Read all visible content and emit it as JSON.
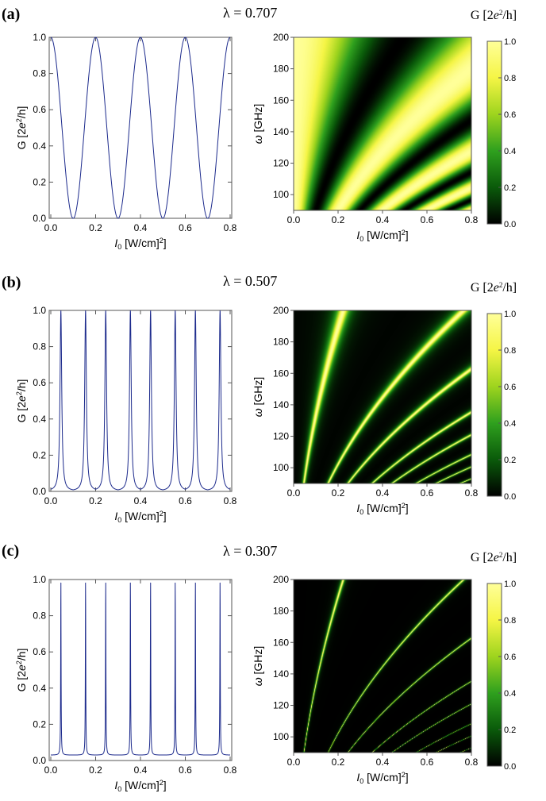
{
  "chart_data": [
    {
      "panel": "(a)",
      "lambda_label": "λ = 0.707",
      "type": "line",
      "xlabel": "I0 [W/cm2]",
      "ylabel": "G [2e2/h]",
      "xlim": [
        0.0,
        0.8
      ],
      "ylim": [
        0.0,
        1.0
      ],
      "xticks": [
        "0.0",
        "0.2",
        "0.4",
        "0.6",
        "0.8"
      ],
      "yticks": [
        "0.0",
        "0.2",
        "0.4",
        "0.6",
        "0.8",
        "1.0"
      ],
      "series": [
        {
          "color": "#1c2a8c",
          "model": {
            "gmin": 0.0,
            "period": 0.2,
            "max_at": 0.0,
            "sharpness": 1.0
          }
        }
      ]
    },
    {
      "panel": "(a)",
      "type": "heatmap",
      "xlabel": "I0 [W/cm2]",
      "ylabel": "ω [GHz]",
      "xlim": [
        0.0,
        0.8
      ],
      "ylim": [
        90,
        200
      ],
      "xticks": [
        "0.0",
        "0.2",
        "0.4",
        "0.6",
        "0.8"
      ],
      "yticks": [
        "100",
        "120",
        "140",
        "160",
        "180",
        "200"
      ],
      "colorbar": {
        "label": "G [2e2/h]",
        "ticks": [
          "0.0",
          "0.2",
          "0.4",
          "0.6",
          "0.8",
          "1.0"
        ],
        "colors": [
          "#000000",
          "#0a5a0a",
          "#2fa01e",
          "#9ed41e",
          "#f5f545",
          "#ffff99"
        ]
      },
      "model": {
        "gmin": 0.0,
        "period_at_90GHz": 0.2,
        "sharpness": 1.0
      }
    },
    {
      "panel": "(b)",
      "lambda_label": "λ = 0.507",
      "type": "line",
      "xlabel": "I0 [W/cm2]",
      "ylabel": "G [2e2/h]",
      "xlim": [
        0.0,
        0.8
      ],
      "ylim": [
        0.0,
        1.0
      ],
      "xticks": [
        "0.0",
        "0.2",
        "0.4",
        "0.6",
        "0.8"
      ],
      "yticks": [
        "0.0",
        "0.2",
        "0.4",
        "0.6",
        "0.8",
        "1.0"
      ],
      "series": [
        {
          "color": "#1c2a8c",
          "model": {
            "gmin": 0.0,
            "period": 0.2,
            "peaks_at": [
              0.045,
              0.155
            ],
            "sharpness": 7.0
          }
        }
      ]
    },
    {
      "panel": "(b)",
      "type": "heatmap",
      "xlabel": "I0 [W/cm2]",
      "ylabel": "ω [GHz]",
      "xlim": [
        0.0,
        0.8
      ],
      "ylim": [
        90,
        200
      ],
      "xticks": [
        "0.0",
        "0.2",
        "0.4",
        "0.6",
        "0.8"
      ],
      "yticks": [
        "100",
        "120",
        "140",
        "160",
        "180",
        "200"
      ],
      "colorbar": {
        "label": "G [2e2/h]",
        "ticks": [
          "0.0",
          "0.2",
          "0.4",
          "0.6",
          "0.8",
          "1.0"
        ],
        "colors": [
          "#000000",
          "#0a5a0a",
          "#2fa01e",
          "#9ed41e",
          "#f5f545",
          "#ffff99"
        ]
      },
      "model": {
        "gmin": 0.0,
        "period_at_90GHz": 0.2,
        "sharpness": 7.0
      }
    },
    {
      "panel": "(c)",
      "lambda_label": "λ = 0.307",
      "type": "line",
      "xlabel": "I0 [W/cm2]",
      "ylabel": "G [2e2/h]",
      "xlim": [
        0.0,
        0.8
      ],
      "ylim": [
        0.0,
        1.0
      ],
      "xticks": [
        "0.0",
        "0.2",
        "0.4",
        "0.6",
        "0.8"
      ],
      "yticks": [
        "0.0",
        "0.2",
        "0.4",
        "0.6",
        "0.8",
        "1.0"
      ],
      "series": [
        {
          "color": "#1c2a8c",
          "model": {
            "gmin": 0.03,
            "period": 0.2,
            "peaks_at": [
              0.045,
              0.155
            ],
            "sharpness": 30.0
          }
        }
      ]
    },
    {
      "panel": "(c)",
      "type": "heatmap",
      "xlabel": "I0 [W/cm2]",
      "ylabel": "ω [GHz]",
      "xlim": [
        0.0,
        0.8
      ],
      "ylim": [
        90,
        200
      ],
      "xticks": [
        "0.0",
        "0.2",
        "0.4",
        "0.6",
        "0.8"
      ],
      "yticks": [
        "100",
        "120",
        "140",
        "160",
        "180",
        "200"
      ],
      "colorbar": {
        "label": "G [2e2/h]",
        "ticks": [
          "0.0",
          "0.2",
          "0.4",
          "0.6",
          "0.8",
          "1.0"
        ],
        "colors": [
          "#000000",
          "#0a5a0a",
          "#2fa01e",
          "#9ed41e",
          "#f5f545",
          "#ffff99"
        ]
      },
      "model": {
        "gmin": 0.0,
        "period_at_90GHz": 0.2,
        "sharpness": 30.0
      }
    }
  ]
}
